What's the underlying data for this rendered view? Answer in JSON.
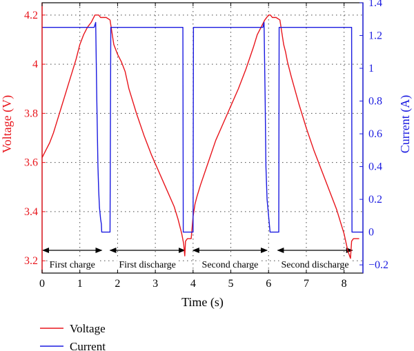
{
  "chart_data": {
    "type": "line",
    "title": "",
    "xlabel": "Time (s)",
    "ylabel_left": "Voltage (V)",
    "ylabel_right": "Current (A)",
    "xlim": [
      0,
      8.5
    ],
    "ylim_left": [
      3.15,
      4.25
    ],
    "ylim_right": [
      -0.25,
      1.4
    ],
    "xticks": [
      0,
      1,
      2,
      3,
      4,
      5,
      6,
      7,
      8
    ],
    "yticks_left": [
      3.2,
      3.4,
      3.6,
      3.8,
      4.0,
      4.2
    ],
    "yticks_left_labels": [
      "3.2",
      "3.4",
      "3.6",
      "3.8",
      "4",
      "4.2"
    ],
    "yticks_right": [
      -0.2,
      0,
      0.2,
      0.4,
      0.6,
      0.8,
      1.0,
      1.2,
      1.4
    ],
    "yticks_right_labels": [
      "−0.2",
      "0",
      "0.2",
      "0.4",
      "0.6",
      "0.8",
      "1",
      "1.2",
      "1.4"
    ],
    "grid": true,
    "legend_position": "bottom-left",
    "colors": {
      "voltage": "#e8141b",
      "current": "#1a1ae0"
    },
    "phases": [
      {
        "label": "First charge",
        "x_start": 0.02,
        "x_end": 1.58
      },
      {
        "label": "First discharge",
        "x_start": 1.8,
        "x_end": 3.78
      },
      {
        "label": "Second charge",
        "x_start": 4.0,
        "x_end": 5.96
      },
      {
        "label": "Second discharge",
        "x_start": 6.24,
        "x_end": 8.22
      }
    ],
    "series": [
      {
        "name": "Voltage",
        "axis": "left",
        "x": [
          0,
          0.1,
          0.2,
          0.3,
          0.4,
          0.5,
          0.6,
          0.7,
          0.8,
          0.9,
          1.0,
          1.1,
          1.2,
          1.3,
          1.4,
          1.45,
          1.5,
          1.55,
          1.6,
          1.7,
          1.8,
          1.82,
          1.9,
          2.0,
          2.1,
          2.2,
          2.3,
          2.5,
          2.7,
          2.9,
          3.1,
          3.3,
          3.5,
          3.6,
          3.7,
          3.75,
          3.78,
          3.8,
          3.85,
          3.95,
          4.0,
          4.05,
          4.1,
          4.2,
          4.4,
          4.6,
          4.8,
          5.0,
          5.2,
          5.4,
          5.6,
          5.7,
          5.8,
          5.9,
          6.0,
          6.05,
          6.1,
          6.2,
          6.3,
          6.4,
          6.45,
          6.5,
          6.6,
          6.8,
          7.0,
          7.2,
          7.4,
          7.6,
          7.8,
          8.0,
          8.1,
          8.17,
          8.2,
          8.25,
          8.4
        ],
        "values": [
          3.62,
          3.65,
          3.68,
          3.72,
          3.77,
          3.82,
          3.87,
          3.92,
          3.97,
          4.02,
          4.08,
          4.12,
          4.15,
          4.17,
          4.2,
          4.2,
          4.2,
          4.19,
          4.19,
          4.19,
          4.18,
          4.16,
          4.08,
          4.04,
          4.01,
          3.97,
          3.9,
          3.8,
          3.71,
          3.63,
          3.56,
          3.49,
          3.42,
          3.37,
          3.31,
          3.27,
          3.22,
          3.28,
          3.29,
          3.29,
          3.38,
          3.43,
          3.46,
          3.51,
          3.6,
          3.69,
          3.76,
          3.83,
          3.9,
          3.98,
          4.07,
          4.12,
          4.15,
          4.18,
          4.2,
          4.2,
          4.19,
          4.19,
          4.18,
          4.08,
          4.05,
          4.01,
          3.95,
          3.84,
          3.74,
          3.65,
          3.57,
          3.49,
          3.41,
          3.31,
          3.24,
          3.21,
          3.28,
          3.29,
          3.29
        ]
      },
      {
        "name": "Current",
        "axis": "right",
        "x": [
          0,
          1.38,
          1.42,
          1.45,
          1.48,
          1.5,
          1.52,
          1.55,
          1.57,
          1.58,
          1.8,
          1.82,
          3.73,
          3.74,
          4.0,
          4.01,
          5.85,
          5.88,
          5.91,
          5.93,
          5.96,
          6.0,
          6.02,
          6.04,
          6.27,
          6.28,
          8.2,
          8.21,
          8.5
        ],
        "values": [
          1.25,
          1.25,
          1.28,
          0.8,
          0.4,
          0.25,
          0.15,
          0.08,
          0.05,
          0.0,
          0.0,
          1.25,
          1.25,
          0.0,
          0.0,
          1.25,
          1.25,
          1.28,
          0.8,
          0.4,
          0.2,
          0.1,
          0.05,
          0.0,
          0.0,
          1.25,
          1.25,
          0.0,
          0.0
        ]
      }
    ]
  }
}
